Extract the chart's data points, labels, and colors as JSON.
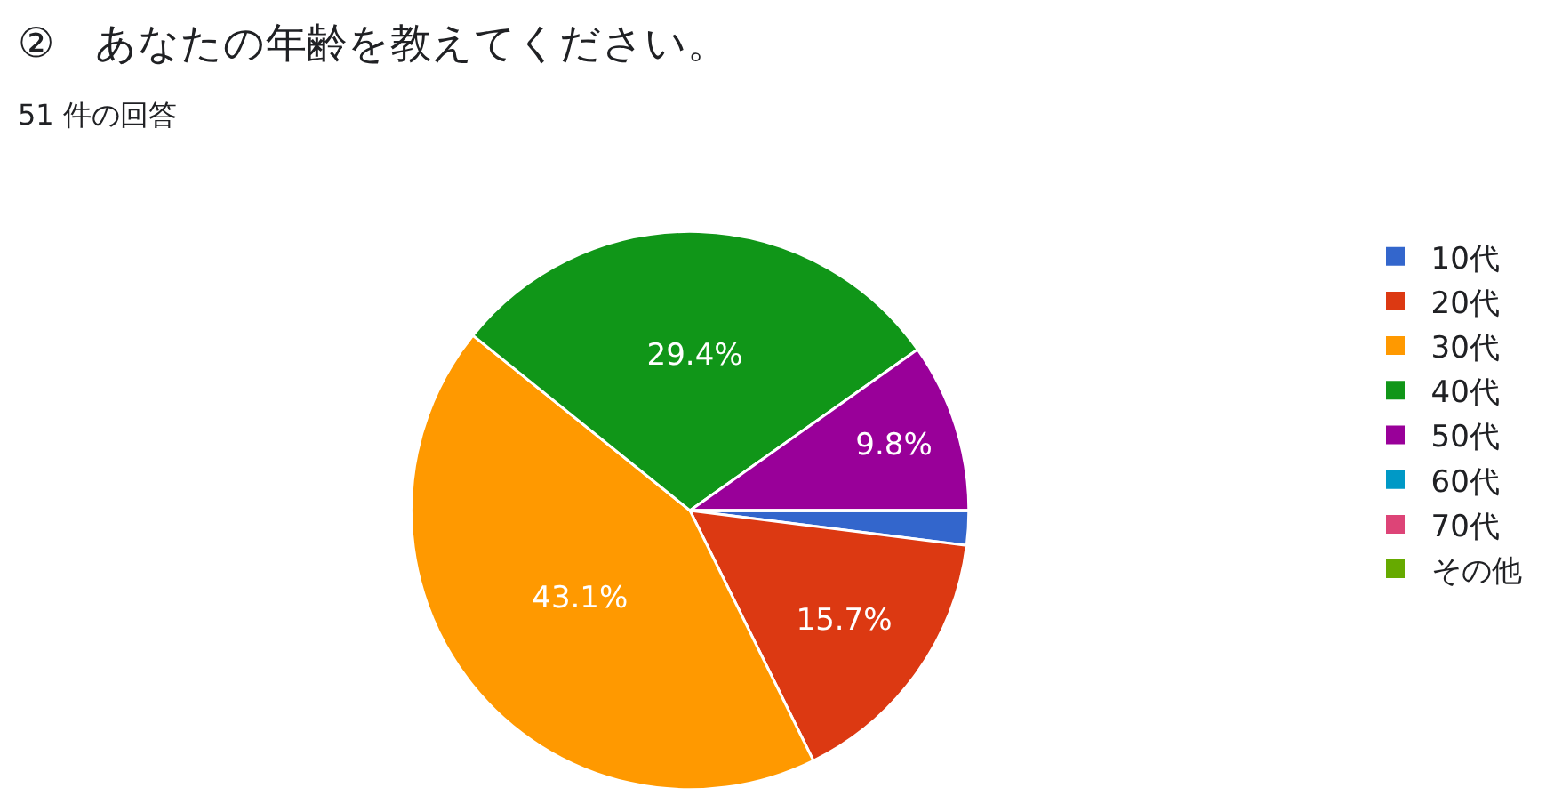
{
  "chart_data": {
    "type": "pie",
    "title": "②　あなたの年齢を教えてください。",
    "subtitle": "51 件の回答",
    "categories": [
      "10代",
      "20代",
      "30代",
      "40代",
      "50代",
      "60代",
      "70代",
      "その他"
    ],
    "values": [
      2.0,
      15.7,
      43.1,
      29.4,
      9.8,
      0,
      0,
      0
    ],
    "value_labels": [
      null,
      "15.7%",
      "43.1%",
      "29.4%",
      "9.8%",
      null,
      null,
      null
    ],
    "colors": [
      "#3366cc",
      "#dc3912",
      "#ff9900",
      "#109618",
      "#990099",
      "#0099c6",
      "#dd4477",
      "#66aa00"
    ],
    "legend": "right"
  }
}
